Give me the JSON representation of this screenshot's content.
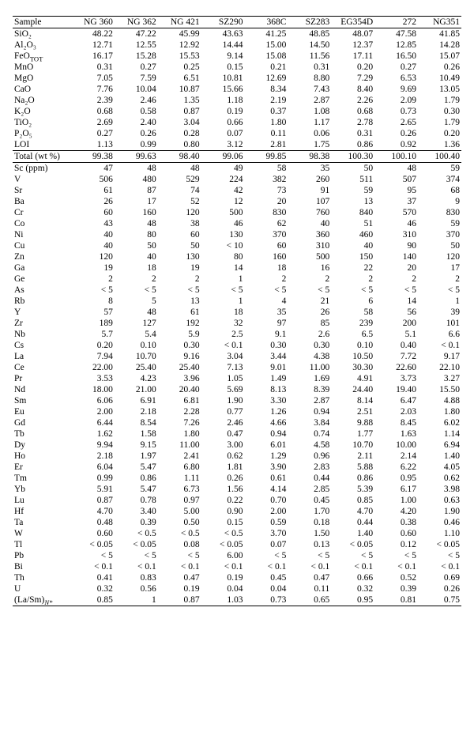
{
  "header": {
    "sample_label": "Sample",
    "columns": [
      "NG 360",
      "NG 362",
      "NG 421",
      "SZ290",
      "368C",
      "SZ283",
      "EG354D",
      "272",
      "NG351"
    ]
  },
  "oxides": [
    {
      "label": "SiO₂",
      "vals": [
        "48.22",
        "47.22",
        "45.99",
        "43.63",
        "41.25",
        "48.85",
        "48.07",
        "47.58",
        "41.85"
      ]
    },
    {
      "label": "Al₂O₃",
      "vals": [
        "12.71",
        "12.55",
        "12.92",
        "14.44",
        "15.00",
        "14.50",
        "12.37",
        "12.85",
        "14.28"
      ]
    },
    {
      "label": "FeO<sub>TOT</sub>",
      "html": true,
      "vals": [
        "16.17",
        "15.28",
        "15.53",
        "9.14",
        "15.08",
        "11.56",
        "17.11",
        "16.50",
        "15.07"
      ]
    },
    {
      "label": "MnO",
      "vals": [
        "0.31",
        "0.27",
        "0.25",
        "0.15",
        "0.21",
        "0.31",
        "0.20",
        "0.27",
        "0.26"
      ]
    },
    {
      "label": "MgO",
      "vals": [
        "7.05",
        "7.59",
        "6.51",
        "10.81",
        "12.69",
        "8.80",
        "7.29",
        "6.53",
        "10.49"
      ]
    },
    {
      "label": "CaO",
      "vals": [
        "7.76",
        "10.04",
        "10.87",
        "15.66",
        "8.34",
        "7.43",
        "8.40",
        "9.69",
        "13.05"
      ]
    },
    {
      "label": "Na₂O",
      "vals": [
        "2.39",
        "2.46",
        "1.35",
        "1.18",
        "2.19",
        "2.87",
        "2.26",
        "2.09",
        "1.79"
      ]
    },
    {
      "label": "K₂O",
      "vals": [
        "0.68",
        "0.58",
        "0.87",
        "0.19",
        "0.37",
        "1.08",
        "0.68",
        "0.73",
        "0.30"
      ]
    },
    {
      "label": "TiO₂",
      "vals": [
        "2.69",
        "2.40",
        "3.04",
        "0.66",
        "1.80",
        "1.17",
        "2.78",
        "2.65",
        "1.79"
      ]
    },
    {
      "label": "P₂O₅",
      "vals": [
        "0.27",
        "0.26",
        "0.28",
        "0.07",
        "0.11",
        "0.06",
        "0.31",
        "0.26",
        "0.20"
      ]
    },
    {
      "label": "LOI",
      "vals": [
        "1.13",
        "0.99",
        "0.80",
        "3.12",
        "2.81",
        "1.75",
        "0.86",
        "0.92",
        "1.36"
      ]
    }
  ],
  "total": {
    "label": "Total (wt %)",
    "vals": [
      "99.38",
      "99.63",
      "98.40",
      "99.06",
      "99.85",
      "98.38",
      "100.30",
      "100.10",
      "100.40"
    ]
  },
  "traces": [
    {
      "label": "Sc (ppm)",
      "vals": [
        "47",
        "48",
        "48",
        "49",
        "58",
        "35",
        "50",
        "48",
        "59"
      ]
    },
    {
      "label": "V",
      "vals": [
        "506",
        "480",
        "529",
        "224",
        "382",
        "260",
        "511",
        "507",
        "374"
      ]
    },
    {
      "label": "Sr",
      "vals": [
        "61",
        "87",
        "74",
        "42",
        "73",
        "91",
        "59",
        "95",
        "68"
      ]
    },
    {
      "label": "Ba",
      "vals": [
        "26",
        "17",
        "52",
        "12",
        "20",
        "107",
        "13",
        "37",
        "9"
      ]
    },
    {
      "label": "Cr",
      "vals": [
        "60",
        "160",
        "120",
        "500",
        "830",
        "760",
        "840",
        "570",
        "830"
      ]
    },
    {
      "label": "Co",
      "vals": [
        "43",
        "48",
        "38",
        "46",
        "62",
        "40",
        "51",
        "46",
        "59"
      ]
    },
    {
      "label": "Ni",
      "vals": [
        "40",
        "80",
        "60",
        "130",
        "370",
        "360",
        "460",
        "310",
        "370"
      ]
    },
    {
      "label": "Cu",
      "vals": [
        "40",
        "50",
        "50",
        "< 10",
        "60",
        "310",
        "40",
        "90",
        "50"
      ]
    },
    {
      "label": "Zn",
      "vals": [
        "120",
        "40",
        "130",
        "80",
        "160",
        "500",
        "150",
        "140",
        "120"
      ]
    },
    {
      "label": "Ga",
      "vals": [
        "19",
        "18",
        "19",
        "14",
        "18",
        "16",
        "22",
        "20",
        "17"
      ]
    },
    {
      "label": "Ge",
      "vals": [
        "2",
        "2",
        "2",
        "1",
        "2",
        "2",
        "2",
        "2",
        "2"
      ]
    },
    {
      "label": "As",
      "vals": [
        "< 5",
        "< 5",
        "< 5",
        "< 5",
        "< 5",
        "< 5",
        "< 5",
        "< 5",
        "< 5"
      ]
    },
    {
      "label": "Rb",
      "vals": [
        "8",
        "5",
        "13",
        "1",
        "4",
        "21",
        "6",
        "14",
        "1"
      ]
    },
    {
      "label": "Y",
      "vals": [
        "57",
        "48",
        "61",
        "18",
        "35",
        "26",
        "58",
        "56",
        "39"
      ]
    },
    {
      "label": "Zr",
      "vals": [
        "189",
        "127",
        "192",
        "32",
        "97",
        "85",
        "239",
        "200",
        "101"
      ]
    },
    {
      "label": "Nb",
      "vals": [
        "5.7",
        "5.4",
        "5.9",
        "2.5",
        "9.1",
        "2.6",
        "6.5",
        "5.1",
        "6.6"
      ]
    },
    {
      "label": "Cs",
      "vals": [
        "0.20",
        "0.10",
        "0.30",
        "< 0.1",
        "0.30",
        "0.30",
        "0.10",
        "0.40",
        "< 0.1"
      ]
    },
    {
      "label": "La",
      "vals": [
        "7.94",
        "10.70",
        "9.16",
        "3.04",
        "3.44",
        "4.38",
        "10.50",
        "7.72",
        "9.17"
      ]
    },
    {
      "label": "Ce",
      "vals": [
        "22.00",
        "25.40",
        "25.40",
        "7.13",
        "9.01",
        "11.00",
        "30.30",
        "22.60",
        "22.10"
      ]
    },
    {
      "label": "Pr",
      "vals": [
        "3.53",
        "4.23",
        "3.96",
        "1.05",
        "1.49",
        "1.69",
        "4.91",
        "3.73",
        "3.27"
      ]
    },
    {
      "label": "Nd",
      "vals": [
        "18.00",
        "21.00",
        "20.40",
        "5.69",
        "8.13",
        "8.39",
        "24.40",
        "19.40",
        "15.50"
      ]
    },
    {
      "label": "Sm",
      "vals": [
        "6.06",
        "6.91",
        "6.81",
        "1.90",
        "3.30",
        "2.87",
        "8.14",
        "6.47",
        "4.88"
      ]
    },
    {
      "label": "Eu",
      "vals": [
        "2.00",
        "2.18",
        "2.28",
        "0.77",
        "1.26",
        "0.94",
        "2.51",
        "2.03",
        "1.80"
      ]
    },
    {
      "label": "Gd",
      "vals": [
        "6.44",
        "8.54",
        "7.26",
        "2.46",
        "4.66",
        "3.84",
        "9.88",
        "8.45",
        "6.02"
      ]
    },
    {
      "label": "Tb",
      "vals": [
        "1.62",
        "1.58",
        "1.80",
        "0.47",
        "0.94",
        "0.74",
        "1.77",
        "1.63",
        "1.14"
      ]
    },
    {
      "label": "Dy",
      "vals": [
        "9.94",
        "9.15",
        "11.00",
        "3.00",
        "6.01",
        "4.58",
        "10.70",
        "10.00",
        "6.94"
      ]
    },
    {
      "label": "Ho",
      "vals": [
        "2.18",
        "1.97",
        "2.41",
        "0.62",
        "1.29",
        "0.96",
        "2.11",
        "2.14",
        "1.40"
      ]
    },
    {
      "label": "Er",
      "vals": [
        "6.04",
        "5.47",
        "6.80",
        "1.81",
        "3.90",
        "2.83",
        "5.88",
        "6.22",
        "4.05"
      ]
    },
    {
      "label": "Tm",
      "vals": [
        "0.99",
        "0.86",
        "1.11",
        "0.26",
        "0.61",
        "0.44",
        "0.86",
        "0.95",
        "0.62"
      ]
    },
    {
      "label": "Yb",
      "vals": [
        "5.91",
        "5.47",
        "6.73",
        "1.56",
        "4.14",
        "2.85",
        "5.39",
        "6.17",
        "3.98"
      ]
    },
    {
      "label": "Lu",
      "vals": [
        "0.87",
        "0.78",
        "0.97",
        "0.22",
        "0.70",
        "0.45",
        "0.85",
        "1.00",
        "0.63"
      ]
    },
    {
      "label": "Hf",
      "vals": [
        "4.70",
        "3.40",
        "5.00",
        "0.90",
        "2.00",
        "1.70",
        "4.70",
        "4.20",
        "1.90"
      ]
    },
    {
      "label": "Ta",
      "vals": [
        "0.48",
        "0.39",
        "0.50",
        "0.15",
        "0.59",
        "0.18",
        "0.44",
        "0.38",
        "0.46"
      ]
    },
    {
      "label": "W",
      "vals": [
        "0.60",
        "< 0.5",
        "< 0.5",
        "< 0.5",
        "3.70",
        "1.50",
        "1.40",
        "0.60",
        "1.10"
      ]
    },
    {
      "label": "Tl",
      "vals": [
        "< 0.05",
        "< 0.05",
        "0.08",
        "< 0.05",
        "0.07",
        "0.13",
        "< 0.05",
        "0.12",
        "< 0.05"
      ]
    },
    {
      "label": "Pb",
      "vals": [
        "< 5",
        "< 5",
        "< 5",
        "6.00",
        "< 5",
        "< 5",
        "< 5",
        "< 5",
        "< 5"
      ]
    },
    {
      "label": "Bi",
      "vals": [
        "< 0.1",
        "< 0.1",
        "< 0.1",
        "< 0.1",
        "< 0.1",
        "< 0.1",
        "< 0.1",
        "< 0.1",
        "< 0.1"
      ]
    },
    {
      "label": "Th",
      "vals": [
        "0.41",
        "0.83",
        "0.47",
        "0.19",
        "0.45",
        "0.47",
        "0.66",
        "0.52",
        "0.69"
      ]
    },
    {
      "label": "U",
      "vals": [
        "0.32",
        "0.56",
        "0.19",
        "0.04",
        "0.04",
        "0.11",
        "0.32",
        "0.39",
        "0.26"
      ]
    },
    {
      "label": "(La/Sm)<span class=\"subscript-lower\"><i>N*</i></span>",
      "html": true,
      "vals": [
        "0.85",
        "1",
        "0.87",
        "1.03",
        "0.73",
        "0.65",
        "0.95",
        "0.81",
        "0.75"
      ]
    }
  ]
}
